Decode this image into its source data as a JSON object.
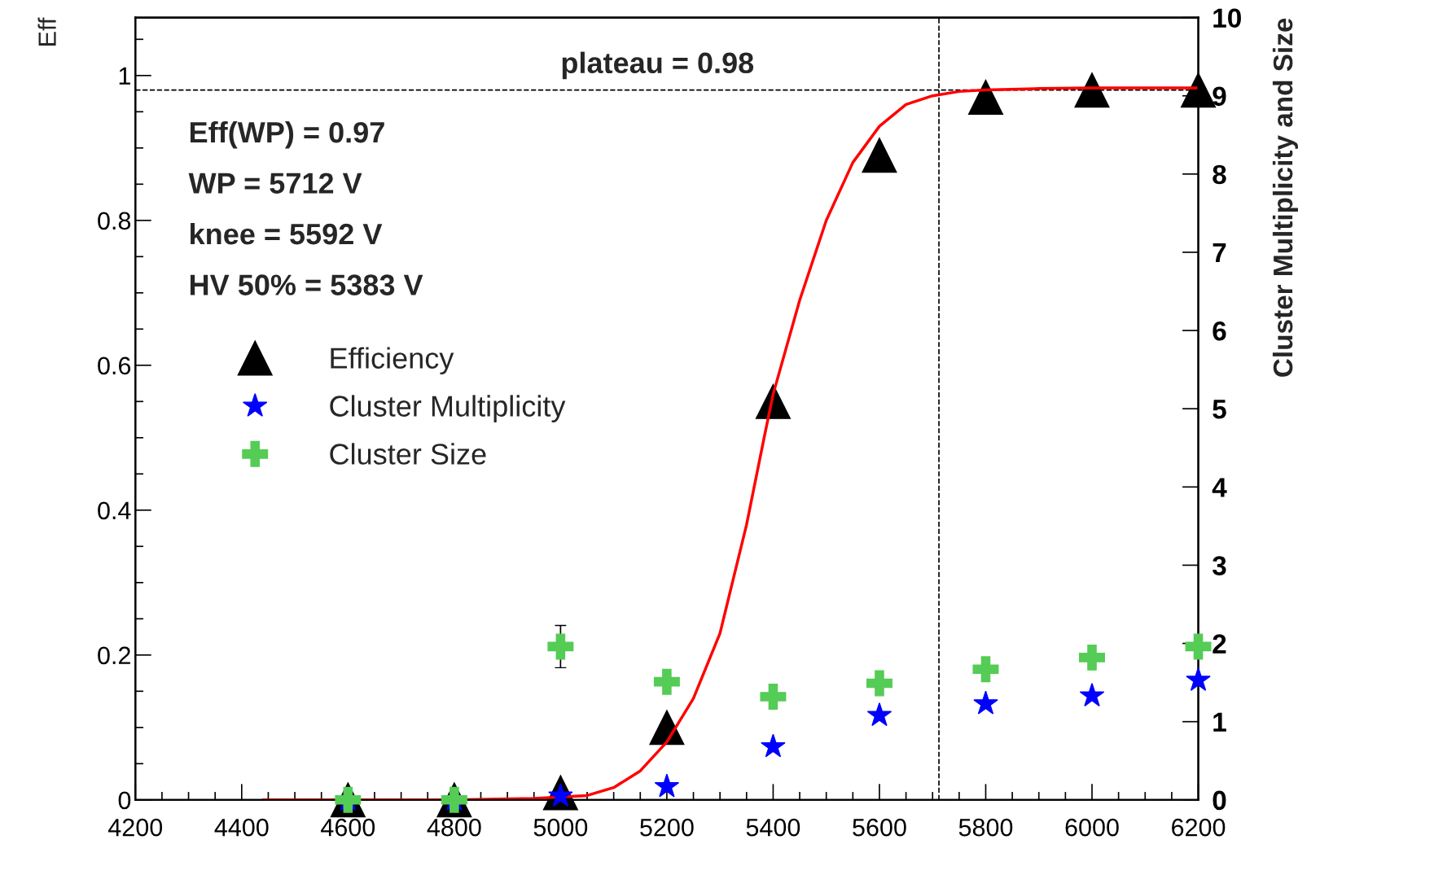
{
  "chart_data": {
    "type": "scatter",
    "ylabel": "Eff",
    "y2label": "Cluster Multiplicity and Size",
    "xlim": [
      4200,
      6200
    ],
    "xticks": [
      4200,
      4400,
      4600,
      4800,
      5000,
      5200,
      5400,
      5600,
      5800,
      6000,
      6200
    ],
    "ylim": [
      0,
      1.08
    ],
    "yticks": [
      0,
      0.2,
      0.4,
      0.6,
      0.8,
      1
    ],
    "y2lim": [
      0,
      10
    ],
    "y2ticks": [
      0,
      1,
      2,
      3,
      4,
      5,
      6,
      7,
      8,
      9,
      10
    ],
    "x": [
      4600,
      4800,
      5000,
      5200,
      5400,
      5600,
      5800,
      6000,
      6200
    ],
    "series": [
      {
        "name": "Efficiency",
        "marker": "triangle",
        "color": "#000000",
        "values": [
          0,
          0,
          0.01,
          0.1,
          0.55,
          0.89,
          0.97,
          0.98,
          0.98
        ]
      },
      {
        "name": "Cluster Multiplicity",
        "marker": "star",
        "axis": "y2",
        "color": "#0000ff",
        "values": [
          0,
          0,
          0.05,
          0.17,
          0.68,
          1.08,
          1.23,
          1.33,
          1.53
        ]
      },
      {
        "name": "Cluster Size",
        "marker": "cross",
        "axis": "y2",
        "color": "#55cc55",
        "values": [
          0,
          0,
          1.96,
          1.51,
          1.32,
          1.49,
          1.67,
          1.82,
          1.96
        ],
        "errors": [
          null,
          null,
          0.27,
          null,
          null,
          null,
          null,
          null,
          null
        ]
      },
      {
        "type": "line",
        "color": "#ff0000",
        "marker": "none",
        "x": [
          4440,
          4600,
          4800,
          4950,
          5050,
          5100,
          5150,
          5200,
          5250,
          5300,
          5350,
          5383,
          5400,
          5450,
          5500,
          5550,
          5600,
          5650,
          5700,
          5750,
          5800,
          5900,
          6000,
          6200
        ],
        "values": [
          0,
          0,
          0,
          0.002,
          0.006,
          0.017,
          0.04,
          0.08,
          0.14,
          0.23,
          0.38,
          0.5,
          0.56,
          0.69,
          0.8,
          0.88,
          0.93,
          0.96,
          0.972,
          0.978,
          0.98,
          0.982,
          0.983,
          0.983
        ]
      }
    ],
    "ref_lines": [
      {
        "axis": "y",
        "value": 0.98,
        "line_style": "dashed",
        "color": "#000000"
      },
      {
        "axis": "x",
        "value": 5712,
        "line_style": "dashed",
        "color": "#000000"
      }
    ],
    "annotations": [
      {
        "text": "plateau = 0.98",
        "x": 5000,
        "y": 0.98
      },
      "Eff(WP) = 0.97",
      "WP = 5712 V",
      "knee = 5592 V",
      "HV 50% = 5383 V"
    ],
    "legend": "left",
    "grid": false
  }
}
